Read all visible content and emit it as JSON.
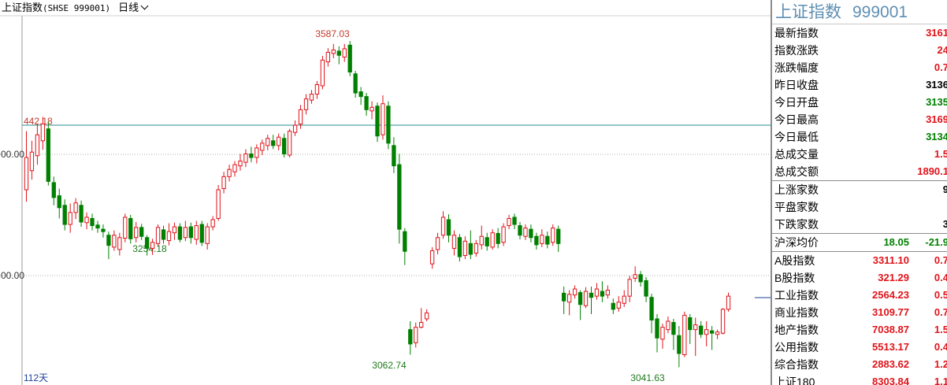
{
  "header": {
    "title": "上证指数",
    "ticker": "(SHSE 999001)",
    "period": "日线"
  },
  "chart": {
    "day_count_label": "112天",
    "price_lines": {
      "upper": "00.00",
      "lower": "00.00"
    },
    "hline_label": "442.18",
    "annotations": {
      "high": "3587.03",
      "low1": "3254.18",
      "low2": "3062.74",
      "low3": "3041.63"
    }
  },
  "chart_data": {
    "type": "candlestick",
    "xlabel": "",
    "ylabel": "",
    "candles": [
      {
        "o": 3338,
        "c": 3392,
        "h": 3436,
        "l": 3318
      },
      {
        "o": 3370,
        "c": 3401,
        "h": 3420,
        "l": 3355
      },
      {
        "o": 3395,
        "c": 3430,
        "h": 3448,
        "l": 3380
      },
      {
        "o": 3420,
        "c": 3448,
        "h": 3460,
        "l": 3405
      },
      {
        "o": 3440,
        "c": 3352,
        "h": 3452,
        "l": 3345
      },
      {
        "o": 3350,
        "c": 3325,
        "h": 3360,
        "l": 3312
      },
      {
        "o": 3328,
        "c": 3308,
        "h": 3340,
        "l": 3290
      },
      {
        "o": 3312,
        "c": 3280,
        "h": 3322,
        "l": 3270
      },
      {
        "o": 3280,
        "c": 3300,
        "h": 3315,
        "l": 3266
      },
      {
        "o": 3300,
        "c": 3316,
        "h": 3324,
        "l": 3289
      },
      {
        "o": 3312,
        "c": 3284,
        "h": 3320,
        "l": 3276
      },
      {
        "o": 3283,
        "c": 3292,
        "h": 3300,
        "l": 3272
      },
      {
        "o": 3290,
        "c": 3278,
        "h": 3298,
        "l": 3270
      },
      {
        "o": 3279,
        "c": 3274,
        "h": 3286,
        "l": 3266
      },
      {
        "o": 3272,
        "c": 3268,
        "h": 3280,
        "l": 3258
      },
      {
        "o": 3262,
        "c": 3245,
        "h": 3268,
        "l": 3222
      },
      {
        "o": 3242,
        "c": 3262,
        "h": 3270,
        "l": 3236
      },
      {
        "o": 3238,
        "c": 3258,
        "h": 3266,
        "l": 3228
      },
      {
        "o": 3257,
        "c": 3292,
        "h": 3298,
        "l": 3250
      },
      {
        "o": 3290,
        "c": 3256,
        "h": 3296,
        "l": 3248
      },
      {
        "o": 3258,
        "c": 3275,
        "h": 3284,
        "l": 3250
      },
      {
        "o": 3275,
        "c": 3260,
        "h": 3281,
        "l": 3254
      },
      {
        "o": 3258,
        "c": 3240,
        "h": 3262,
        "l": 3228
      },
      {
        "o": 3240,
        "c": 3250,
        "h": 3256,
        "l": 3229
      },
      {
        "o": 3248,
        "c": 3275,
        "h": 3280,
        "l": 3244
      },
      {
        "o": 3271,
        "c": 3255,
        "h": 3278,
        "l": 3248
      },
      {
        "o": 3253,
        "c": 3268,
        "h": 3282,
        "l": 3245
      },
      {
        "o": 3266,
        "c": 3276,
        "h": 3283,
        "l": 3254
      },
      {
        "o": 3276,
        "c": 3255,
        "h": 3282,
        "l": 3250
      },
      {
        "o": 3258,
        "c": 3275,
        "h": 3286,
        "l": 3252
      },
      {
        "o": 3276,
        "c": 3258,
        "h": 3283,
        "l": 3248
      },
      {
        "o": 3255,
        "c": 3278,
        "h": 3286,
        "l": 3246
      },
      {
        "o": 3280,
        "c": 3250,
        "h": 3286,
        "l": 3244
      },
      {
        "o": 3248,
        "c": 3276,
        "h": 3282,
        "l": 3238
      },
      {
        "o": 3276,
        "c": 3288,
        "h": 3294,
        "l": 3270
      },
      {
        "o": 3290,
        "c": 3338,
        "h": 3346,
        "l": 3286
      },
      {
        "o": 3340,
        "c": 3360,
        "h": 3368,
        "l": 3332
      },
      {
        "o": 3360,
        "c": 3372,
        "h": 3380,
        "l": 3352
      },
      {
        "o": 3368,
        "c": 3380,
        "h": 3386,
        "l": 3360
      },
      {
        "o": 3378,
        "c": 3386,
        "h": 3398,
        "l": 3370
      },
      {
        "o": 3384,
        "c": 3398,
        "h": 3406,
        "l": 3376
      },
      {
        "o": 3398,
        "c": 3392,
        "h": 3410,
        "l": 3384
      },
      {
        "o": 3392,
        "c": 3408,
        "h": 3414,
        "l": 3382
      },
      {
        "o": 3404,
        "c": 3416,
        "h": 3422,
        "l": 3396
      },
      {
        "o": 3412,
        "c": 3424,
        "h": 3430,
        "l": 3404
      },
      {
        "o": 3420,
        "c": 3412,
        "h": 3430,
        "l": 3406
      },
      {
        "o": 3412,
        "c": 3426,
        "h": 3432,
        "l": 3404
      },
      {
        "o": 3424,
        "c": 3398,
        "h": 3432,
        "l": 3392
      },
      {
        "o": 3396,
        "c": 3436,
        "h": 3440,
        "l": 3392
      },
      {
        "o": 3434,
        "c": 3446,
        "h": 3454,
        "l": 3428
      },
      {
        "o": 3448,
        "c": 3472,
        "h": 3480,
        "l": 3440
      },
      {
        "o": 3472,
        "c": 3490,
        "h": 3498,
        "l": 3464
      },
      {
        "o": 3488,
        "c": 3498,
        "h": 3505,
        "l": 3482
      },
      {
        "o": 3498,
        "c": 3514,
        "h": 3520,
        "l": 3490
      },
      {
        "o": 3512,
        "c": 3555,
        "h": 3562,
        "l": 3506
      },
      {
        "o": 3552,
        "c": 3568,
        "h": 3575,
        "l": 3544
      },
      {
        "o": 3566,
        "c": 3572,
        "h": 3582,
        "l": 3558
      },
      {
        "o": 3570,
        "c": 3563,
        "h": 3578,
        "l": 3548
      },
      {
        "o": 3560,
        "c": 3574,
        "h": 3582,
        "l": 3552
      },
      {
        "o": 3580,
        "c": 3535,
        "h": 3587,
        "l": 3528
      },
      {
        "o": 3532,
        "c": 3500,
        "h": 3537,
        "l": 3492
      },
      {
        "o": 3502,
        "c": 3494,
        "h": 3510,
        "l": 3480
      },
      {
        "o": 3494,
        "c": 3472,
        "h": 3500,
        "l": 3462
      },
      {
        "o": 3470,
        "c": 3476,
        "h": 3486,
        "l": 3456
      },
      {
        "o": 3478,
        "c": 3428,
        "h": 3484,
        "l": 3418
      },
      {
        "o": 3430,
        "c": 3482,
        "h": 3496,
        "l": 3422
      },
      {
        "o": 3478,
        "c": 3416,
        "h": 3486,
        "l": 3406
      },
      {
        "o": 3412,
        "c": 3378,
        "h": 3426,
        "l": 3366
      },
      {
        "o": 3380,
        "c": 3272,
        "h": 3398,
        "l": 3248
      },
      {
        "o": 3268,
        "c": 3235,
        "h": 3274,
        "l": 3212
      },
      {
        "o": 3104,
        "c": 3080,
        "h": 3118,
        "l": 3062
      },
      {
        "o": 3082,
        "c": 3108,
        "h": 3116,
        "l": 3074
      },
      {
        "o": 3108,
        "c": 3116,
        "h": 3140,
        "l": 3106
      },
      {
        "o": 3122,
        "c": 3132,
        "h": 3138,
        "l": 3118
      },
      {
        "o": 3214,
        "c": 3236,
        "h": 3242,
        "l": 3206
      },
      {
        "o": 3238,
        "c": 3258,
        "h": 3266,
        "l": 3230
      },
      {
        "o": 3262,
        "c": 3292,
        "h": 3302,
        "l": 3256
      },
      {
        "o": 3288,
        "c": 3262,
        "h": 3297,
        "l": 3250
      },
      {
        "o": 3240,
        "c": 3262,
        "h": 3270,
        "l": 3228
      },
      {
        "o": 3258,
        "c": 3226,
        "h": 3264,
        "l": 3218
      },
      {
        "o": 3228,
        "c": 3252,
        "h": 3260,
        "l": 3222
      },
      {
        "o": 3248,
        "c": 3230,
        "h": 3270,
        "l": 3222
      },
      {
        "o": 3232,
        "c": 3248,
        "h": 3254,
        "l": 3226
      },
      {
        "o": 3246,
        "c": 3260,
        "h": 3278,
        "l": 3238
      },
      {
        "o": 3258,
        "c": 3244,
        "h": 3266,
        "l": 3236
      },
      {
        "o": 3242,
        "c": 3266,
        "h": 3272,
        "l": 3238
      },
      {
        "o": 3265,
        "c": 3248,
        "h": 3274,
        "l": 3240
      },
      {
        "o": 3250,
        "c": 3276,
        "h": 3282,
        "l": 3244
      },
      {
        "o": 3278,
        "c": 3290,
        "h": 3296,
        "l": 3272
      },
      {
        "o": 3292,
        "c": 3280,
        "h": 3298,
        "l": 3272
      },
      {
        "o": 3278,
        "c": 3262,
        "h": 3284,
        "l": 3255
      },
      {
        "o": 3260,
        "c": 3274,
        "h": 3280,
        "l": 3254
      },
      {
        "o": 3272,
        "c": 3258,
        "h": 3280,
        "l": 3250
      },
      {
        "o": 3260,
        "c": 3246,
        "h": 3266,
        "l": 3238
      },
      {
        "o": 3248,
        "c": 3262,
        "h": 3272,
        "l": 3242
      },
      {
        "o": 3260,
        "c": 3247,
        "h": 3268,
        "l": 3240
      },
      {
        "o": 3250,
        "c": 3274,
        "h": 3280,
        "l": 3244
      },
      {
        "o": 3272,
        "c": 3248,
        "h": 3278,
        "l": 3234
      },
      {
        "o": 3165,
        "c": 3152,
        "h": 3176,
        "l": 3130
      },
      {
        "o": 3150,
        "c": 3163,
        "h": 3170,
        "l": 3128
      },
      {
        "o": 3162,
        "c": 3172,
        "h": 3178,
        "l": 3156
      },
      {
        "o": 3166,
        "c": 3146,
        "h": 3170,
        "l": 3120
      },
      {
        "o": 3144,
        "c": 3168,
        "h": 3175,
        "l": 3140
      },
      {
        "o": 3165,
        "c": 3158,
        "h": 3176,
        "l": 3130
      },
      {
        "o": 3160,
        "c": 3172,
        "h": 3182,
        "l": 3154
      },
      {
        "o": 3168,
        "c": 3160,
        "h": 3185,
        "l": 3150
      },
      {
        "o": 3162,
        "c": 3170,
        "h": 3178,
        "l": 3156
      },
      {
        "o": 3148,
        "c": 3138,
        "h": 3156,
        "l": 3130
      },
      {
        "o": 3140,
        "c": 3150,
        "h": 3160,
        "l": 3134
      },
      {
        "o": 3148,
        "c": 3160,
        "h": 3170,
        "l": 3142
      },
      {
        "o": 3160,
        "c": 3188,
        "h": 3194,
        "l": 3150
      },
      {
        "o": 3190,
        "c": 3196,
        "h": 3210,
        "l": 3184
      },
      {
        "o": 3196,
        "c": 3184,
        "h": 3202,
        "l": 3176
      },
      {
        "o": 3186,
        "c": 3160,
        "h": 3192,
        "l": 3150
      },
      {
        "o": 3158,
        "c": 3120,
        "h": 3164,
        "l": 3098
      },
      {
        "o": 3122,
        "c": 3090,
        "h": 3130,
        "l": 3066
      },
      {
        "o": 3088,
        "c": 3108,
        "h": 3114,
        "l": 3072
      },
      {
        "o": 3104,
        "c": 3118,
        "h": 3126,
        "l": 3098
      },
      {
        "o": 3116,
        "c": 3096,
        "h": 3122,
        "l": 3070
      },
      {
        "o": 3094,
        "c": 3064,
        "h": 3110,
        "l": 3041
      },
      {
        "o": 3062,
        "c": 3128,
        "h": 3134,
        "l": 3058
      },
      {
        "o": 3124,
        "c": 3104,
        "h": 3130,
        "l": 3080
      },
      {
        "o": 3104,
        "c": 3112,
        "h": 3124,
        "l": 3060
      },
      {
        "o": 3110,
        "c": 3096,
        "h": 3118,
        "l": 3090
      },
      {
        "o": 3096,
        "c": 3104,
        "h": 3118,
        "l": 3076
      },
      {
        "o": 3102,
        "c": 3098,
        "h": 3110,
        "l": 3070
      },
      {
        "o": 3096,
        "c": 3100,
        "h": 3104,
        "l": 3088
      },
      {
        "o": 3098,
        "c": 3138,
        "h": 3140,
        "l": 3096
      },
      {
        "o": 3138,
        "c": 3160,
        "h": 3166,
        "l": 3134
      }
    ]
  },
  "sidebar": {
    "title": "上证指数",
    "code": "999001",
    "quote_rows": [
      {
        "label": "最新指数",
        "value": "3161",
        "color": "red"
      },
      {
        "label": "指数涨跌",
        "value": "24",
        "color": "red"
      },
      {
        "label": "涨跌幅度",
        "value": "0.7",
        "color": "red"
      },
      {
        "label": "昨日收盘",
        "value": "3136",
        "color": "black"
      },
      {
        "label": "今日开盘",
        "value": "3135",
        "color": "green"
      },
      {
        "label": "今日最高",
        "value": "3169",
        "color": "red"
      },
      {
        "label": "今日最低",
        "value": "3134",
        "color": "green"
      },
      {
        "label": "总成交量",
        "value": "1.5",
        "color": "red"
      },
      {
        "label": "总成交额",
        "value": "1890.1",
        "color": "red"
      }
    ],
    "breadth_rows": [
      {
        "label": "上涨家数",
        "value": "9",
        "color": "black"
      },
      {
        "label": "平盘家数",
        "value": "",
        "color": "black"
      },
      {
        "label": "下跌家数",
        "value": "3",
        "color": "black"
      }
    ],
    "avg_row": {
      "label": "沪深均价",
      "value1": "18.05",
      "value2": "-21.9"
    },
    "index_rows": [
      {
        "label": "A股指数",
        "value1": "3311.10",
        "value2": "0.7"
      },
      {
        "label": "B股指数",
        "value1": "321.29",
        "value2": "0.4"
      },
      {
        "label": "工业指数",
        "value1": "2564.23",
        "value2": "0.5"
      },
      {
        "label": "商业指数",
        "value1": "3109.77",
        "value2": "0.7"
      },
      {
        "label": "地产指数",
        "value1": "7038.87",
        "value2": "1.5"
      },
      {
        "label": "公用指数",
        "value1": "5513.17",
        "value2": "0.4"
      },
      {
        "label": "综合指数",
        "value1": "2883.62",
        "value2": "1.2"
      },
      {
        "label": "上证180",
        "value1": "8303.84",
        "value2": "1.1"
      }
    ]
  },
  "colors": {
    "up": "#e0131a",
    "down": "#008000",
    "grid": "#b0b0b0",
    "hline": "#2a8c8c",
    "accent": "#5f8fb3"
  }
}
